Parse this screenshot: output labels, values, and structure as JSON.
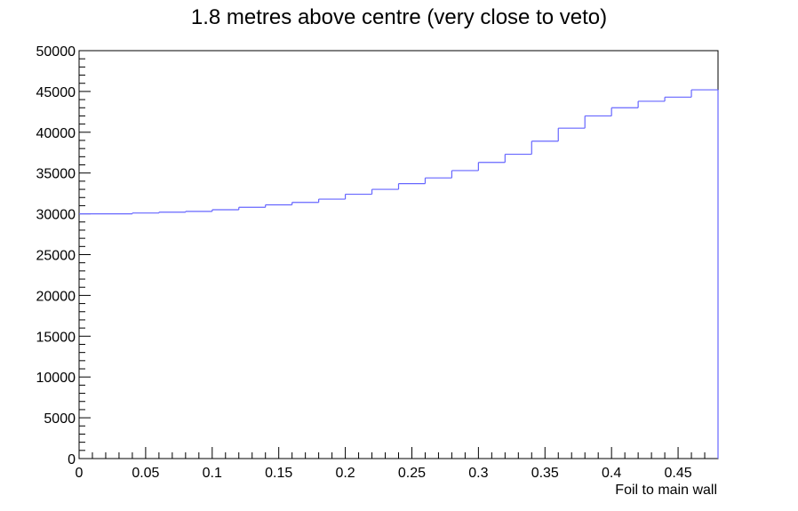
{
  "chart_data": {
    "type": "histogram",
    "title": "1.8 metres above centre (very close to veto)",
    "xlabel": "Foil to main wall",
    "ylabel": "",
    "xlim": [
      0,
      0.48
    ],
    "ylim": [
      0,
      50000
    ],
    "grid": false,
    "line_color": "#6666ff",
    "x_ticks": [
      "0",
      "0.05",
      "0.1",
      "0.15",
      "0.2",
      "0.25",
      "0.3",
      "0.35",
      "0.4",
      "0.45"
    ],
    "y_ticks": [
      "0",
      "5000",
      "10000",
      "15000",
      "20000",
      "25000",
      "30000",
      "35000",
      "40000",
      "45000",
      "50000"
    ],
    "bin_edges": [
      0,
      0.04,
      0.06,
      0.08,
      0.1,
      0.12,
      0.14,
      0.16,
      0.18,
      0.2,
      0.22,
      0.24,
      0.26,
      0.28,
      0.3,
      0.32,
      0.34,
      0.36,
      0.38,
      0.4,
      0.42,
      0.44,
      0.46,
      0.48
    ],
    "values": [
      30000,
      30100,
      30200,
      30300,
      30500,
      30800,
      31100,
      31400,
      31800,
      32400,
      33000,
      33700,
      34400,
      35300,
      36300,
      37300,
      38900,
      40500,
      42000,
      43000,
      43800,
      44300,
      45200
    ]
  }
}
